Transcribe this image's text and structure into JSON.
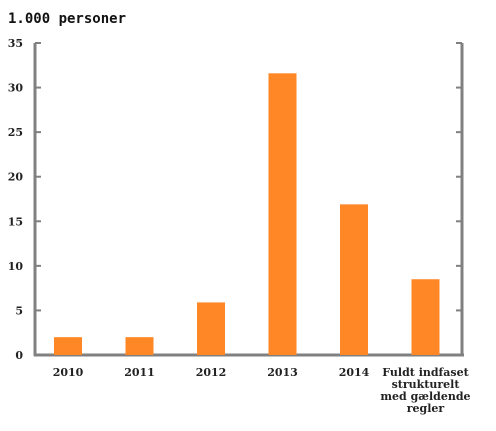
{
  "chart_data": {
    "type": "bar",
    "unit_label": "1.000 personer",
    "categories": [
      "2010",
      "2011",
      "2012",
      "2013",
      "2014",
      "Fuldt indfaset strukturelt med gældende regler"
    ],
    "category_lines": [
      [
        "2010"
      ],
      [
        "2011"
      ],
      [
        "2012"
      ],
      [
        "2013"
      ],
      [
        "2014"
      ],
      [
        "Fuldt indfaset",
        "strukturelt",
        "med gældende",
        "regler"
      ]
    ],
    "values": [
      2.0,
      2.0,
      5.9,
      31.6,
      16.9,
      8.5
    ],
    "ylim": [
      0,
      35
    ],
    "yticks": [
      0,
      5,
      10,
      15,
      20,
      25,
      30,
      35
    ],
    "grid": false,
    "colors": {
      "bar": "#ff8726",
      "axis": "#808080",
      "text": "#222222"
    }
  }
}
